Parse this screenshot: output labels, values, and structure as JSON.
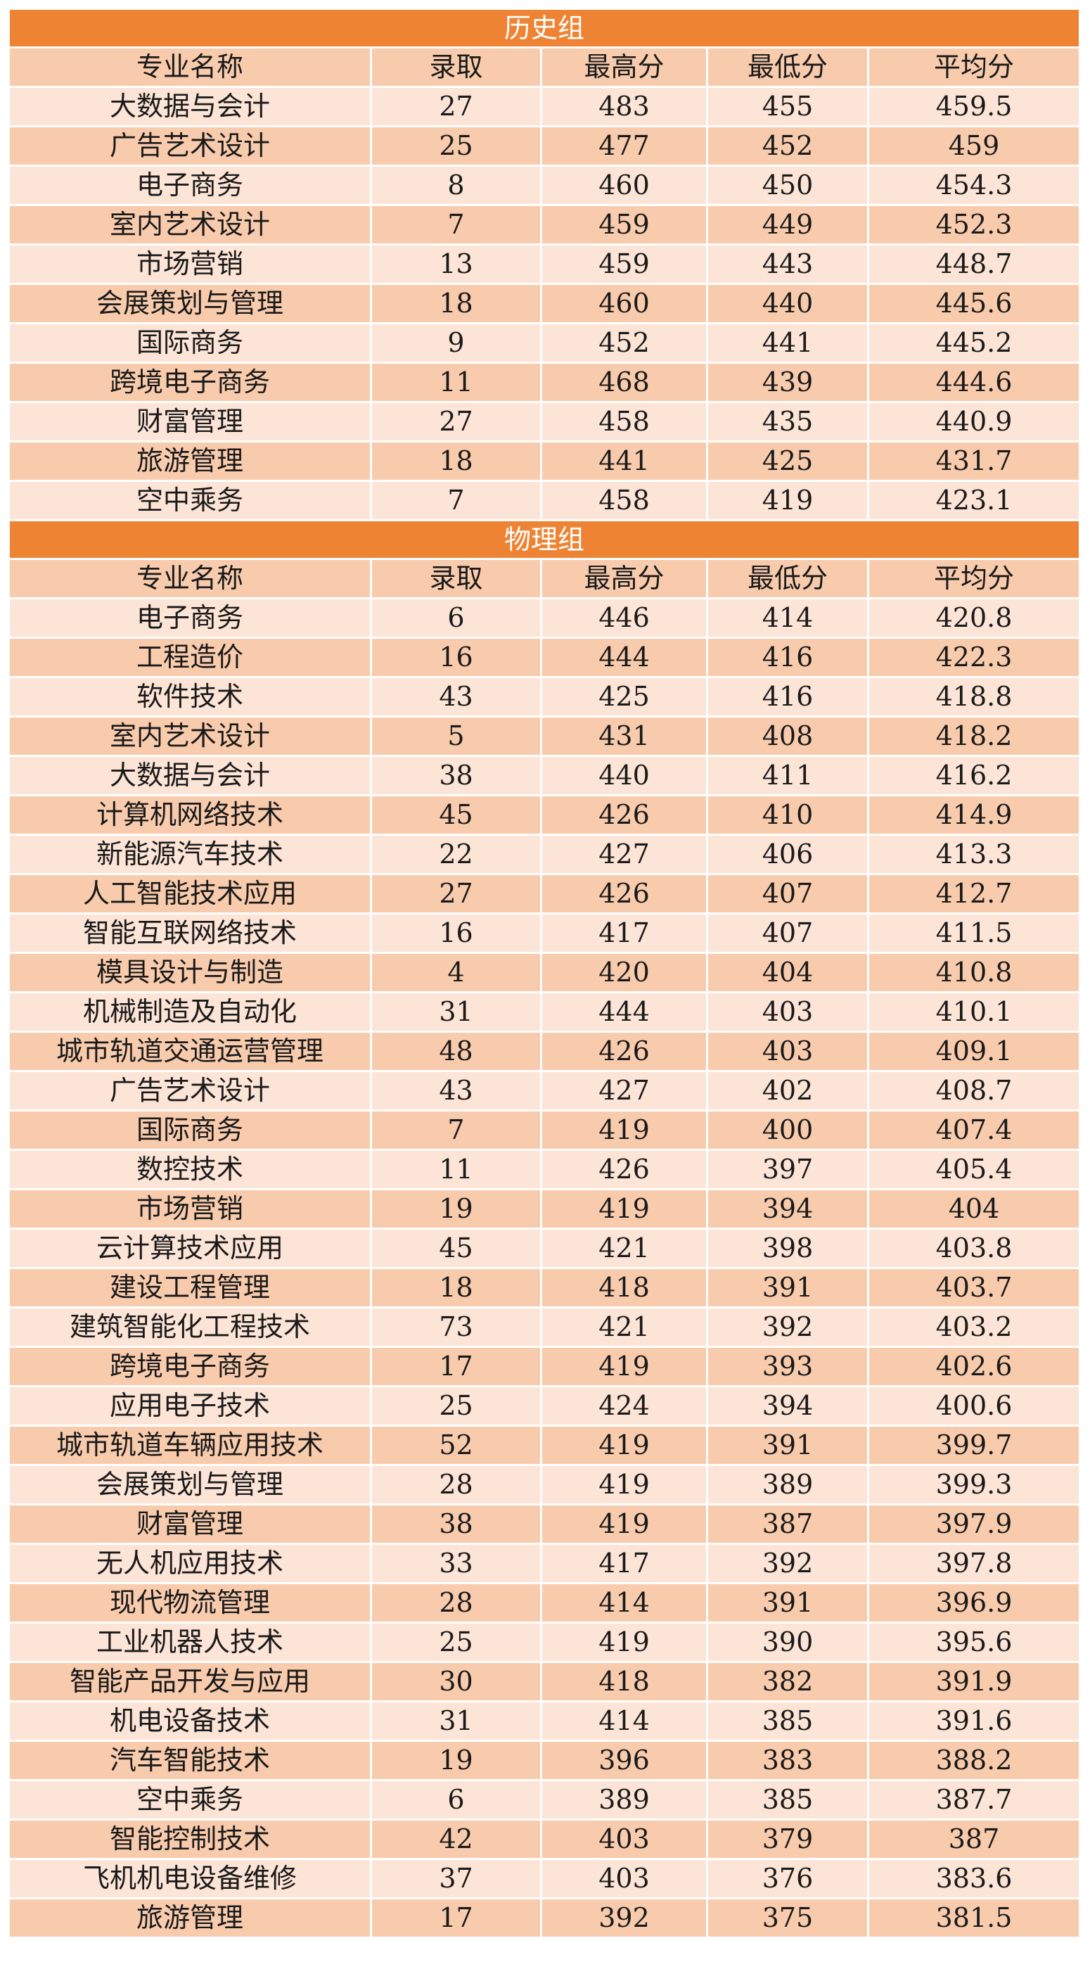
{
  "columns": [
    "专业名称",
    "录取",
    "最高分",
    "最低分",
    "平均分"
  ],
  "sections": [
    {
      "title": "历史组",
      "rows": [
        [
          "大数据与会计",
          "27",
          "483",
          "455",
          "459.5"
        ],
        [
          "广告艺术设计",
          "25",
          "477",
          "452",
          "459"
        ],
        [
          "电子商务",
          "8",
          "460",
          "450",
          "454.3"
        ],
        [
          "室内艺术设计",
          "7",
          "459",
          "449",
          "452.3"
        ],
        [
          "市场营销",
          "13",
          "459",
          "443",
          "448.7"
        ],
        [
          "会展策划与管理",
          "18",
          "460",
          "440",
          "445.6"
        ],
        [
          "国际商务",
          "9",
          "452",
          "441",
          "445.2"
        ],
        [
          "跨境电子商务",
          "11",
          "468",
          "439",
          "444.6"
        ],
        [
          "财富管理",
          "27",
          "458",
          "435",
          "440.9"
        ],
        [
          "旅游管理",
          "18",
          "441",
          "425",
          "431.7"
        ],
        [
          "空中乘务",
          "7",
          "458",
          "419",
          "423.1"
        ]
      ]
    },
    {
      "title": "物理组",
      "rows": [
        [
          "电子商务",
          "6",
          "446",
          "414",
          "420.8"
        ],
        [
          "工程造价",
          "16",
          "444",
          "416",
          "422.3"
        ],
        [
          "软件技术",
          "43",
          "425",
          "416",
          "418.8"
        ],
        [
          "室内艺术设计",
          "5",
          "431",
          "408",
          "418.2"
        ],
        [
          "大数据与会计",
          "38",
          "440",
          "411",
          "416.2"
        ],
        [
          "计算机网络技术",
          "45",
          "426",
          "410",
          "414.9"
        ],
        [
          "新能源汽车技术",
          "22",
          "427",
          "406",
          "413.3"
        ],
        [
          "人工智能技术应用",
          "27",
          "426",
          "407",
          "412.7"
        ],
        [
          "智能互联网络技术",
          "16",
          "417",
          "407",
          "411.5"
        ],
        [
          "模具设计与制造",
          "4",
          "420",
          "404",
          "410.8"
        ],
        [
          "机械制造及自动化",
          "31",
          "444",
          "403",
          "410.1"
        ],
        [
          "城市轨道交通运营管理",
          "48",
          "426",
          "403",
          "409.1"
        ],
        [
          "广告艺术设计",
          "43",
          "427",
          "402",
          "408.7"
        ],
        [
          "国际商务",
          "7",
          "419",
          "400",
          "407.4"
        ],
        [
          "数控技术",
          "11",
          "426",
          "397",
          "405.4"
        ],
        [
          "市场营销",
          "19",
          "419",
          "394",
          "404"
        ],
        [
          "云计算技术应用",
          "45",
          "421",
          "398",
          "403.8"
        ],
        [
          "建设工程管理",
          "18",
          "418",
          "391",
          "403.7"
        ],
        [
          "建筑智能化工程技术",
          "73",
          "421",
          "392",
          "403.2"
        ],
        [
          "跨境电子商务",
          "17",
          "419",
          "393",
          "402.6"
        ],
        [
          "应用电子技术",
          "25",
          "424",
          "394",
          "400.6"
        ],
        [
          "城市轨道车辆应用技术",
          "52",
          "419",
          "391",
          "399.7"
        ],
        [
          "会展策划与管理",
          "28",
          "419",
          "389",
          "399.3"
        ],
        [
          "财富管理",
          "38",
          "419",
          "387",
          "397.9"
        ],
        [
          "无人机应用技术",
          "33",
          "417",
          "392",
          "397.8"
        ],
        [
          "现代物流管理",
          "28",
          "414",
          "391",
          "396.9"
        ],
        [
          "工业机器人技术",
          "25",
          "419",
          "390",
          "395.6"
        ],
        [
          "智能产品开发与应用",
          "30",
          "418",
          "382",
          "391.9"
        ],
        [
          "机电设备技术",
          "31",
          "414",
          "385",
          "391.6"
        ],
        [
          "汽车智能技术",
          "19",
          "396",
          "383",
          "388.2"
        ],
        [
          "空中乘务",
          "6",
          "389",
          "385",
          "387.7"
        ],
        [
          "智能控制技术",
          "42",
          "403",
          "379",
          "387"
        ],
        [
          "飞机机电设备维修",
          "37",
          "403",
          "376",
          "383.6"
        ],
        [
          "旅游管理",
          "17",
          "392",
          "375",
          "381.5"
        ]
      ]
    }
  ],
  "colors": {
    "section_header_bg": "#ee8333",
    "section_header_text": "#ffffff",
    "row_light": "#fce4d6",
    "row_dark": "#f8cbad"
  }
}
